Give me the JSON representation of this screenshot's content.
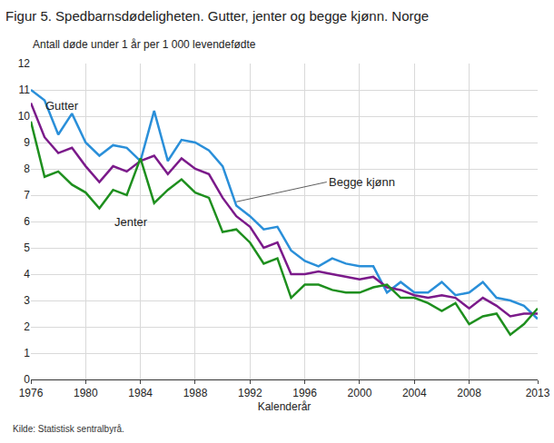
{
  "chart_data": {
    "type": "line",
    "title": "Figur 5. Spedbarnsdødeligheten. Gutter, jenter og begge kjønn. Norge",
    "y_label": "Antall døde under 1 år per 1 000 levendefødte",
    "x_label": "Kalenderår",
    "source": "Kilde: Statistisk sentralbyrå.",
    "x": [
      1976,
      1977,
      1978,
      1979,
      1980,
      1981,
      1982,
      1983,
      1984,
      1985,
      1986,
      1987,
      1988,
      1989,
      1990,
      1991,
      1992,
      1993,
      1994,
      1995,
      1996,
      1997,
      1998,
      1999,
      2000,
      2001,
      2002,
      2003,
      2004,
      2005,
      2006,
      2007,
      2008,
      2009,
      2010,
      2011,
      2012,
      2013
    ],
    "series": [
      {
        "name": "Gutter",
        "color": "#2a8fd9",
        "values": [
          11.0,
          10.6,
          9.3,
          10.1,
          9.0,
          8.5,
          8.9,
          8.8,
          8.3,
          10.2,
          8.3,
          9.1,
          9.0,
          8.7,
          8.1,
          6.6,
          6.2,
          5.7,
          5.8,
          4.9,
          4.5,
          4.3,
          4.6,
          4.4,
          4.3,
          4.3,
          3.3,
          3.7,
          3.3,
          3.3,
          3.7,
          3.2,
          3.3,
          3.7,
          3.1,
          3.0,
          2.8,
          2.3
        ]
      },
      {
        "name": "Begge kjønn",
        "color": "#7b1a8a",
        "values": [
          10.5,
          9.2,
          8.6,
          8.8,
          8.1,
          7.5,
          8.1,
          7.9,
          8.3,
          8.5,
          7.8,
          8.4,
          8.0,
          7.8,
          6.9,
          6.2,
          5.8,
          5.0,
          5.2,
          4.0,
          4.0,
          4.1,
          4.0,
          3.9,
          3.8,
          3.9,
          3.5,
          3.4,
          3.2,
          3.1,
          3.2,
          3.1,
          2.7,
          3.1,
          2.8,
          2.4,
          2.5,
          2.5
        ]
      },
      {
        "name": "Jenter",
        "color": "#1e8f1e",
        "values": [
          9.8,
          7.7,
          7.9,
          7.4,
          7.1,
          6.5,
          7.2,
          7.0,
          8.4,
          6.7,
          7.2,
          7.6,
          7.1,
          6.9,
          5.6,
          5.7,
          5.2,
          4.4,
          4.6,
          3.1,
          3.6,
          3.6,
          3.4,
          3.3,
          3.3,
          3.5,
          3.6,
          3.1,
          3.1,
          2.9,
          2.6,
          2.9,
          2.1,
          2.4,
          2.5,
          1.7,
          2.1,
          2.7
        ]
      }
    ],
    "annotations": [
      {
        "text": "Gutter",
        "x": 1978.3,
        "y": 10.4
      },
      {
        "text": "Jenter",
        "x": 1983.3,
        "y": 6.0
      },
      {
        "text": "Begge kjønn",
        "x": 1997.6,
        "y": 7.5,
        "arrow_to": [
          1991,
          6.75
        ]
      }
    ],
    "xlim": [
      1976,
      2013
    ],
    "xticks": [
      1976,
      1980,
      1984,
      1988,
      1992,
      1996,
      2000,
      2004,
      2008,
      2013
    ],
    "ylim": [
      0,
      12
    ],
    "yticks": [
      0,
      1,
      2,
      3,
      4,
      5,
      6,
      7,
      8,
      9,
      10,
      11,
      12
    ],
    "grid": true
  }
}
